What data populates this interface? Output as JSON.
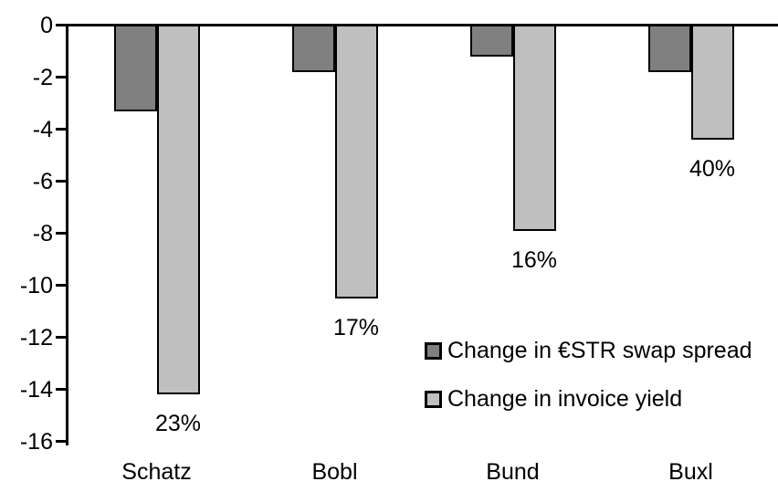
{
  "chart_data": {
    "type": "bar",
    "categories": [
      "Schatz",
      "Bobl",
      "Bund",
      "Buxl"
    ],
    "series": [
      {
        "name": "Change in €STR swap spread",
        "color": "#808080",
        "values": [
          -3.3,
          -1.8,
          -1.2,
          -1.8
        ]
      },
      {
        "name": "Change in invoice yield",
        "color": "#bfbfbf",
        "values": [
          -14.2,
          -10.5,
          -7.9,
          -4.4
        ]
      }
    ],
    "bar_labels": {
      "on_series": "Change in invoice yield",
      "values": [
        "23%",
        "17%",
        "16%",
        "40%"
      ]
    },
    "yticks": [
      "0",
      "-2",
      "-4",
      "-6",
      "-8",
      "-10",
      "-12",
      "-14",
      "-16"
    ],
    "ylim": [
      -16,
      0
    ],
    "title": "",
    "xlabel": "",
    "ylabel": "",
    "grid": false,
    "legend_position": "inside-right-middle",
    "axis_color": "#000000",
    "text_color": "#000000",
    "background": "#ffffff"
  }
}
